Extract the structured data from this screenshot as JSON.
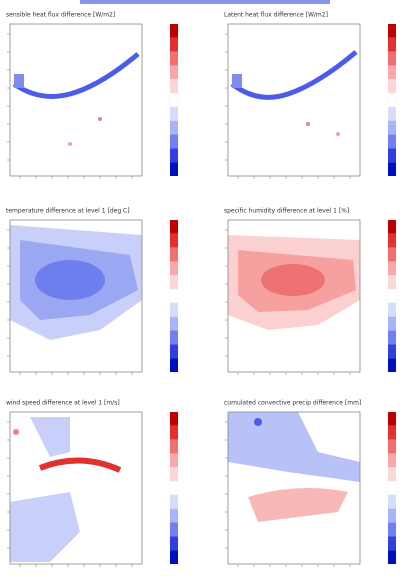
{
  "panels": [
    {
      "title": "sensible heat flux difference [W/m2]"
    },
    {
      "title": "Latent heat flux difference [W/m2]"
    },
    {
      "title": "temperature difference at level 1 [deg C]"
    },
    {
      "title": "specific humidity difference at level 1 [%]"
    },
    {
      "title": "wind speed difference at level 1 [m/s]"
    },
    {
      "title": "cumulated convective precip difference [mm]"
    }
  ]
}
